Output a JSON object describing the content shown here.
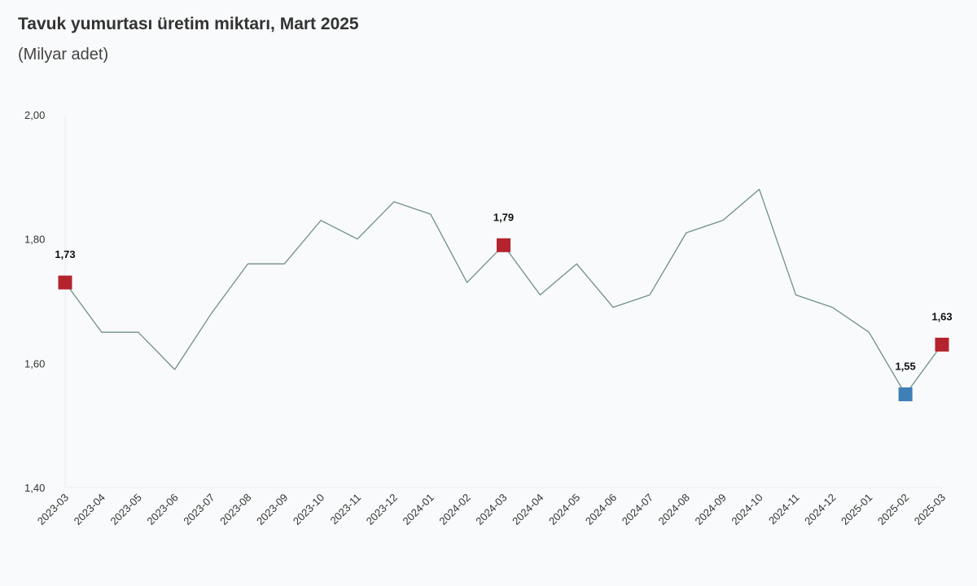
{
  "chart_data": {
    "type": "line",
    "title": "Tavuk yumurtası üretim miktarı, Mart 2025",
    "subtitle": "(Milyar adet)",
    "xlabel": "",
    "ylabel": "",
    "categories": [
      "2023-03",
      "2023-04",
      "2023-05",
      "2023-06",
      "2023-07",
      "2023-08",
      "2023-09",
      "2023-10",
      "2023-11",
      "2023-12",
      "2024-01",
      "2024-02",
      "2024-03",
      "2024-04",
      "2024-05",
      "2024-06",
      "2024-07",
      "2024-08",
      "2024-09",
      "2024-10",
      "2024-11",
      "2024-12",
      "2025-01",
      "2025-02",
      "2025-03"
    ],
    "series": [
      {
        "values": [
          1.73,
          1.65,
          1.65,
          1.59,
          1.68,
          1.76,
          1.76,
          1.83,
          1.8,
          1.86,
          1.84,
          1.73,
          1.79,
          1.71,
          1.76,
          1.69,
          1.71,
          1.81,
          1.83,
          1.88,
          1.71,
          1.69,
          1.65,
          1.55,
          1.63
        ]
      }
    ],
    "ylim": [
      1.4,
      2.0
    ],
    "yticks": [
      "1,40",
      "1,60",
      "1,80",
      "2,00"
    ],
    "ytick_values": [
      1.4,
      1.6,
      1.8,
      2.0
    ],
    "grid": false,
    "line_color": "#6f8f8a",
    "highlights": [
      {
        "index": 0,
        "label": "1,73",
        "color": "#b5232e"
      },
      {
        "index": 12,
        "label": "1,79",
        "color": "#b5232e"
      },
      {
        "index": 23,
        "label": "1,55",
        "color": "#3e7fb8"
      },
      {
        "index": 24,
        "label": "1,63",
        "color": "#b5232e"
      }
    ]
  }
}
